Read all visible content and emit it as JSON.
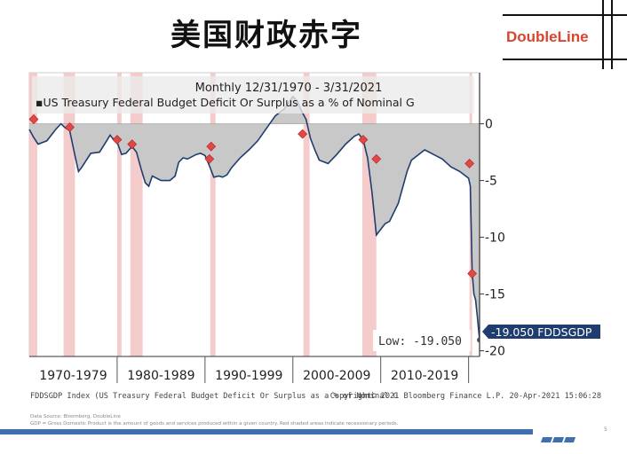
{
  "page_title": "美国财政赤字",
  "logo": "DoubleLine",
  "chart_data": {
    "type": "area",
    "header_line1": "Monthly 12/31/1970 - 3/31/2021",
    "legend_text": "US Treasury Federal Budget Deficit Or Surplus as a % of Nominal G",
    "y_ticks": [
      "0",
      "-5",
      "-10",
      "-15",
      "-20"
    ],
    "ylim": [
      -20.5,
      4.5
    ],
    "xlim": [
      1970.0,
      2021.25
    ],
    "decade_labels": [
      "1970-1979",
      "1980-1989",
      "1990-1999",
      "2000-2009",
      "2010-2019"
    ],
    "decade_boundaries": [
      1980,
      1990,
      2000,
      2010,
      2020
    ],
    "low_label": "Low: -19.050",
    "last_value_label": "-19.050 FDDSGDP",
    "x": [
      1970.0,
      1970.5,
      1971.0,
      1972.0,
      1973.0,
      1973.6,
      1974.0,
      1974.6,
      1975.2,
      1975.6,
      1976.0,
      1977.0,
      1978.0,
      1978.8,
      1979.2,
      1979.6,
      1980.0,
      1980.5,
      1981.0,
      1981.7,
      1982.2,
      1982.7,
      1983.2,
      1983.6,
      1984.0,
      1985.0,
      1986.0,
      1986.6,
      1987.0,
      1987.5,
      1988.0,
      1989.0,
      1989.5,
      1990.0,
      1990.5,
      1991.0,
      1991.6,
      1992.0,
      1992.5,
      1993.0,
      1994.0,
      1995.0,
      1996.0,
      1997.0,
      1998.0,
      1999.0,
      2000.0,
      2000.5,
      2001.0,
      2001.5,
      2002.0,
      2002.5,
      2003.0,
      2004.0,
      2004.5,
      2005.0,
      2006.0,
      2007.0,
      2007.5,
      2008.0,
      2008.5,
      2009.0,
      2009.5,
      2010.0,
      2010.5,
      2011.0,
      2012.0,
      2013.0,
      2013.5,
      2014.0,
      2015.0,
      2016.0,
      2017.0,
      2018.0,
      2019.0,
      2019.5,
      2020.0,
      2020.2,
      2020.4,
      2020.6,
      2020.8,
      2021.0,
      2021.25
    ],
    "values": [
      -0.5,
      -1.2,
      -1.8,
      -1.5,
      -0.5,
      0.0,
      -0.3,
      -0.6,
      -2.8,
      -4.2,
      -3.8,
      -2.6,
      -2.5,
      -1.5,
      -1.0,
      -1.4,
      -1.6,
      -2.7,
      -2.6,
      -2.0,
      -2.5,
      -3.9,
      -5.2,
      -5.5,
      -4.6,
      -5.0,
      -5.0,
      -4.6,
      -3.4,
      -3.0,
      -3.1,
      -2.7,
      -2.6,
      -2.8,
      -3.7,
      -4.7,
      -4.6,
      -4.7,
      -4.5,
      -3.9,
      -3.0,
      -2.3,
      -1.5,
      -0.4,
      0.7,
      1.3,
      2.4,
      2.0,
      1.1,
      0.4,
      -1.3,
      -2.3,
      -3.2,
      -3.5,
      -3.1,
      -2.7,
      -1.8,
      -1.1,
      -0.9,
      -1.4,
      -3.0,
      -6.0,
      -9.8,
      -9.3,
      -8.8,
      -8.6,
      -7.0,
      -4.2,
      -3.2,
      -2.9,
      -2.3,
      -2.7,
      -3.1,
      -3.8,
      -4.2,
      -4.5,
      -4.8,
      -5.5,
      -13.0,
      -15.0,
      -15.5,
      -17.0,
      -19.05
    ],
    "recessions": [
      [
        1970.0,
        1970.9
      ],
      [
        1973.9,
        1975.2
      ],
      [
        1980.0,
        1980.5
      ],
      [
        1981.5,
        1982.9
      ],
      [
        1990.6,
        1991.2
      ],
      [
        2001.2,
        2001.9
      ],
      [
        2007.9,
        2009.5
      ],
      [
        2020.1,
        2020.4
      ]
    ],
    "markers": [
      [
        1970.5,
        0.4
      ],
      [
        1974.6,
        -0.3
      ],
      [
        1980.0,
        -1.4
      ],
      [
        1981.7,
        -1.8
      ],
      [
        1990.5,
        -3.1
      ],
      [
        1990.7,
        -2.0
      ],
      [
        2001.1,
        -0.9
      ],
      [
        2008.0,
        -1.4
      ],
      [
        2009.5,
        -3.1
      ],
      [
        2020.1,
        -3.5
      ],
      [
        2020.4,
        -13.2
      ]
    ],
    "colors": {
      "area": "#c8c8c8",
      "line": "#1f3d6e",
      "recession": "#f3c3c3",
      "marker": "#e04848",
      "axis_panel": "#eaeaea",
      "label_box": "#1f3d6e"
    }
  },
  "footer_line": "FDDSGDP Index (US Treasury Federal Budget Deficit Or Surplus as a % of Nominal G",
  "footer_right": "Copyright© 2021 Bloomberg Finance L.P.      20-Apr-2021 15:06:28",
  "source_line": "Data Source: Bloomberg, DoubleLine",
  "note_line": "GDP = Gross Domestic Product is the amount of goods and services produced within a given country. Red shaded areas indicate recessionary periods.",
  "page_number": "5"
}
